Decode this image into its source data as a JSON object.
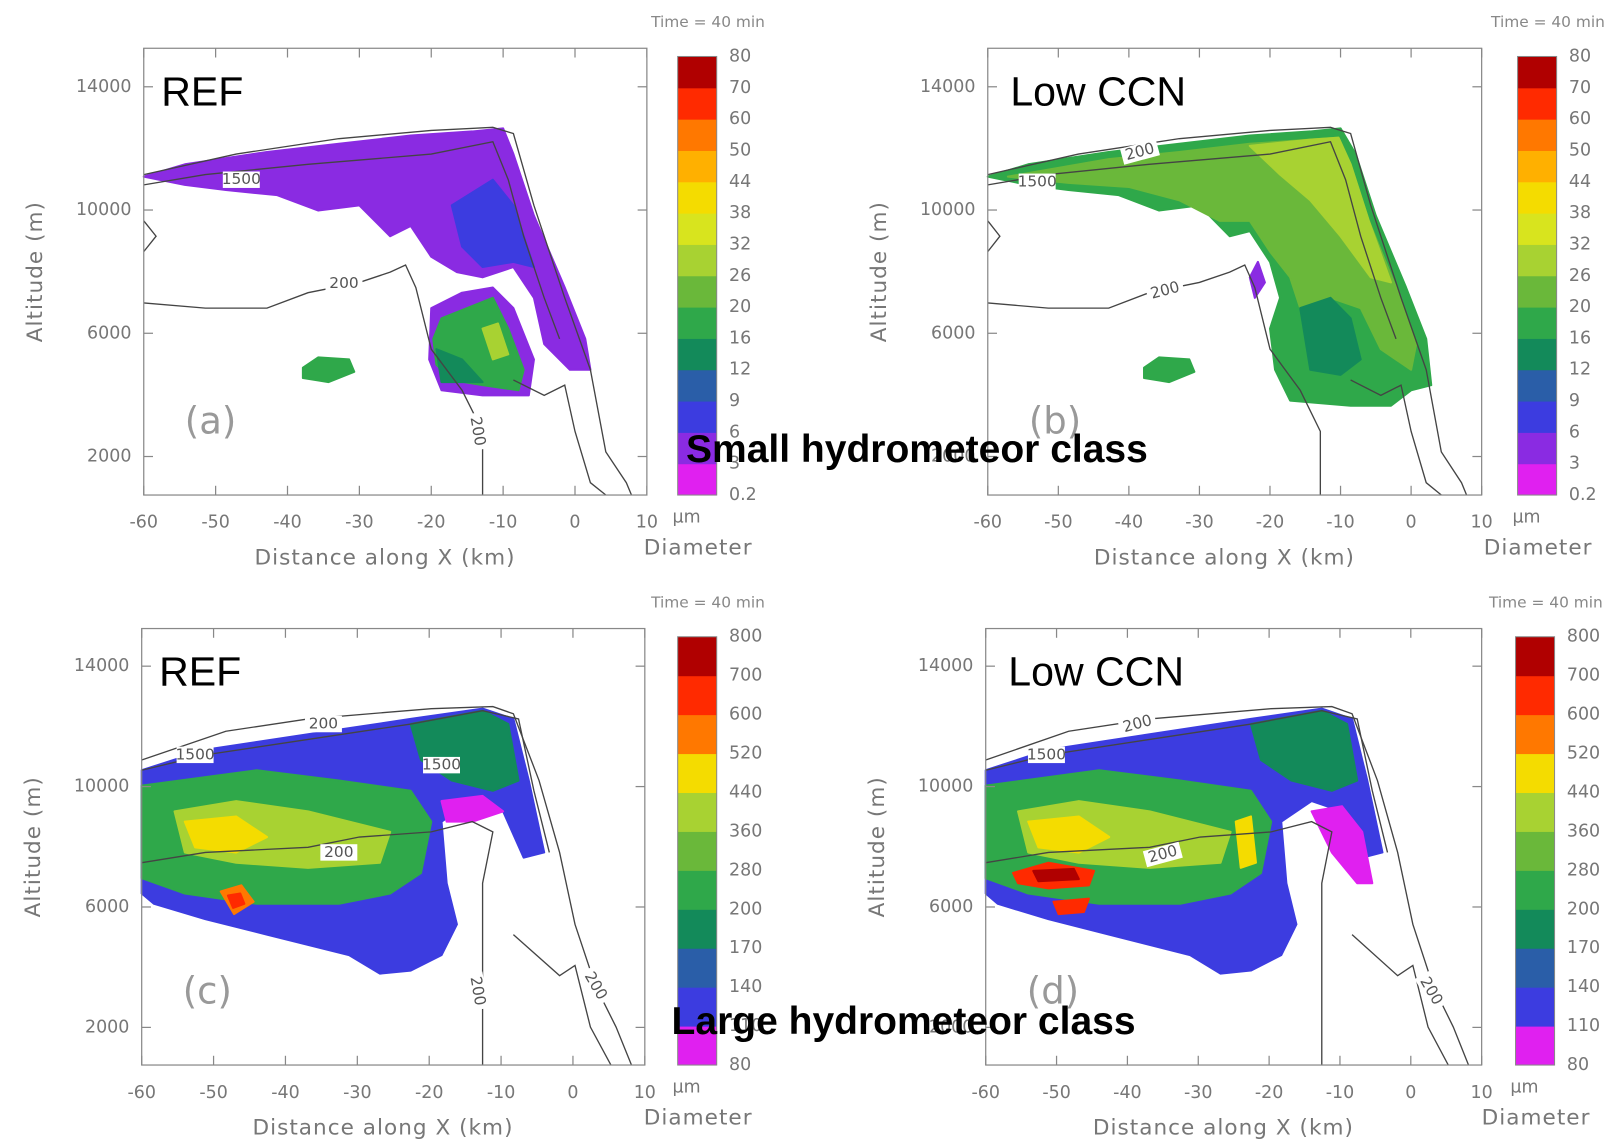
{
  "chart_data": [
    {
      "type": "contour",
      "time_label": "Time = 40 min",
      "case_label": "REF",
      "panel_label": "(a)",
      "xlabel": "Distance along X (km)",
      "ylabel": "Altitude (m)",
      "xlim": [
        -60,
        10
      ],
      "xticks": [
        -60,
        -50,
        -40,
        -30,
        -20,
        -10,
        0,
        10
      ],
      "ylim": [
        750,
        15250
      ],
      "yticks": [
        2000,
        6000,
        10000,
        14000
      ],
      "contour_labels": [
        1500,
        200,
        200
      ],
      "colorbar": {
        "unit": "µm",
        "label": "Diameter",
        "levels": [
          0.2,
          3,
          6,
          9,
          12,
          16,
          20,
          26,
          32,
          38,
          44,
          50,
          60,
          70,
          80
        ],
        "colors": [
          "#e020f0",
          "#8a2be2",
          "#3c3ce0",
          "#2a5ea8",
          "#138a5a",
          "#2fa84a",
          "#6ab83a",
          "#a8d232",
          "#d8e41e",
          "#f4dc00",
          "#ffb000",
          "#ff7800",
          "#ff2a00",
          "#b00000"
        ]
      }
    },
    {
      "type": "contour",
      "time_label": "Time = 40 min",
      "case_label": "Low CCN",
      "panel_label": "(b)",
      "xlabel": "Distance along X (km)",
      "ylabel": "Altitude (m)",
      "xlim": [
        -60,
        10
      ],
      "xticks": [
        -60,
        -50,
        -40,
        -30,
        -20,
        -10,
        0,
        10
      ],
      "ylim": [
        750,
        15250
      ],
      "yticks": [
        2000,
        6000,
        10000,
        14000
      ],
      "contour_labels": [
        200,
        1500,
        200
      ],
      "colorbar": {
        "unit": "µm",
        "label": "Diameter",
        "levels": [
          0.2,
          3,
          6,
          9,
          12,
          16,
          20,
          26,
          32,
          38,
          44,
          50,
          60,
          70,
          80
        ],
        "colors": [
          "#e020f0",
          "#8a2be2",
          "#3c3ce0",
          "#2a5ea8",
          "#138a5a",
          "#2fa84a",
          "#6ab83a",
          "#a8d232",
          "#d8e41e",
          "#f4dc00",
          "#ffb000",
          "#ff7800",
          "#ff2a00",
          "#b00000"
        ]
      }
    },
    {
      "type": "contour",
      "time_label": "Time = 40 min",
      "case_label": "REF",
      "panel_label": "(c)",
      "xlabel": "Distance along X (km)",
      "ylabel": "Altitude (m)",
      "xlim": [
        -60,
        10
      ],
      "xticks": [
        -60,
        -50,
        -40,
        -30,
        -20,
        -10,
        0,
        10
      ],
      "ylim": [
        750,
        15250
      ],
      "yticks": [
        2000,
        6000,
        10000,
        14000
      ],
      "contour_labels": [
        200,
        1500,
        1500,
        200,
        200,
        200
      ],
      "colorbar": {
        "unit": "µm",
        "label": "Diameter",
        "levels": [
          80,
          110,
          140,
          170,
          200,
          280,
          360,
          440,
          520,
          600,
          700,
          800
        ],
        "colors": [
          "#e020f0",
          "#3c3ce0",
          "#2a5ea8",
          "#138a5a",
          "#2fa84a",
          "#6ab83a",
          "#a8d232",
          "#f4dc00",
          "#ff7800",
          "#ff2a00",
          "#b00000"
        ]
      }
    },
    {
      "type": "contour",
      "time_label": "Time = 40 min",
      "case_label": "Low CCN",
      "panel_label": "(d)",
      "xlabel": "Distance along X (km)",
      "ylabel": "Altitude (m)",
      "xlim": [
        -60,
        10
      ],
      "xticks": [
        -60,
        -50,
        -40,
        -30,
        -20,
        -10,
        0,
        10
      ],
      "ylim": [
        750,
        15250
      ],
      "yticks": [
        2000,
        6000,
        10000,
        14000
      ],
      "contour_labels": [
        200,
        1500,
        200,
        200
      ],
      "colorbar": {
        "unit": "µm",
        "label": "Diameter",
        "levels": [
          80,
          110,
          140,
          170,
          200,
          280,
          360,
          440,
          520,
          600,
          700,
          800
        ],
        "colors": [
          "#e020f0",
          "#3c3ce0",
          "#2a5ea8",
          "#138a5a",
          "#2fa84a",
          "#6ab83a",
          "#a8d232",
          "#f4dc00",
          "#ff7800",
          "#ff2a00",
          "#b00000"
        ]
      }
    }
  ],
  "row_labels": [
    "Small hydrometeor class",
    "Large hydrometeor class"
  ]
}
